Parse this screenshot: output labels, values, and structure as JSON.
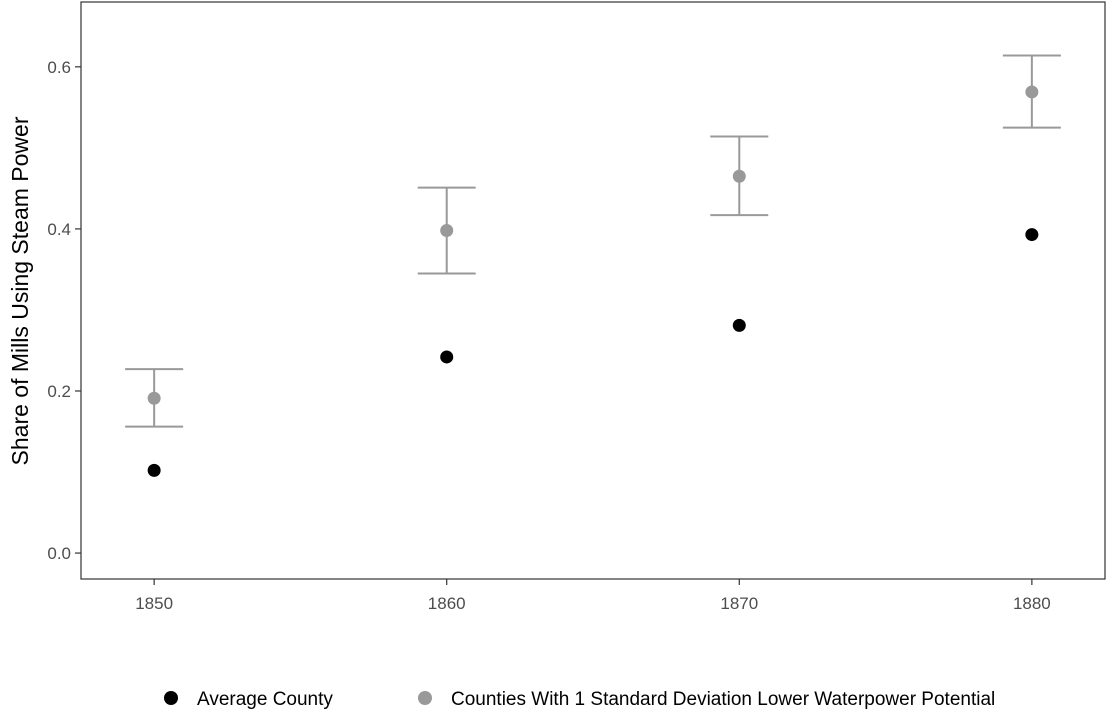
{
  "chart_data": {
    "type": "scatter",
    "x": [
      1850,
      1860,
      1870,
      1880
    ],
    "x_tick_labels": [
      "1850",
      "1860",
      "1870",
      "1880"
    ],
    "y_tick_labels": [
      "0.0",
      "0.2",
      "0.4",
      "0.6"
    ],
    "y_ticks": [
      0.0,
      0.2,
      0.4,
      0.6
    ],
    "ylabel": "Share of Mills Using Steam Power",
    "xlabel": "",
    "xlim": [
      1847.5,
      1882.5
    ],
    "ylim": [
      -0.032,
      0.68
    ],
    "grid": false,
    "legend_position": "bottom",
    "series": [
      {
        "name": "Average County",
        "color": "#000000",
        "values": [
          0.102,
          0.242,
          0.281,
          0.393
        ]
      },
      {
        "name": "Counties With 1 Standard Deviation Lower Waterpower Potential",
        "color": "#999999",
        "values": [
          0.191,
          0.398,
          0.465,
          0.569
        ],
        "error_low": [
          0.156,
          0.345,
          0.417,
          0.525
        ],
        "error_high": [
          0.227,
          0.451,
          0.514,
          0.614
        ]
      }
    ]
  }
}
